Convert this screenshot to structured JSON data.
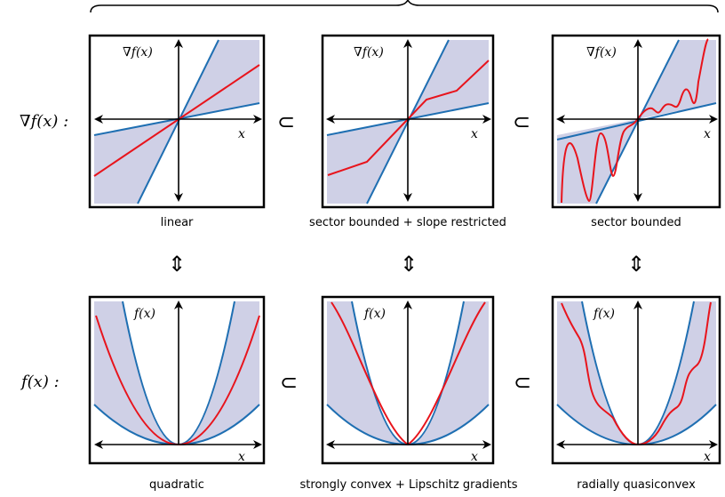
{
  "row_labels": {
    "top": "∇f(x) :",
    "bottom": "f(x) :"
  },
  "axis_labels": {
    "gradient_y": "∇f(x)",
    "function_y": "f(x)",
    "x": "x"
  },
  "symbols": {
    "subset": "⊂",
    "equivalence": "⇕"
  },
  "panels_top": [
    {
      "caption": "linear"
    },
    {
      "caption": "sector bounded + slope restricted"
    },
    {
      "caption": "sector bounded"
    }
  ],
  "panels_bottom": [
    {
      "caption": "quadratic"
    },
    {
      "caption": "strongly convex + Lipschitz gradients"
    },
    {
      "caption": "radially quasiconvex"
    }
  ],
  "colors": {
    "fill": "#cfd0e6",
    "bound": "#1f6fb2",
    "curve": "#e8141c",
    "frame": "#000000"
  }
}
